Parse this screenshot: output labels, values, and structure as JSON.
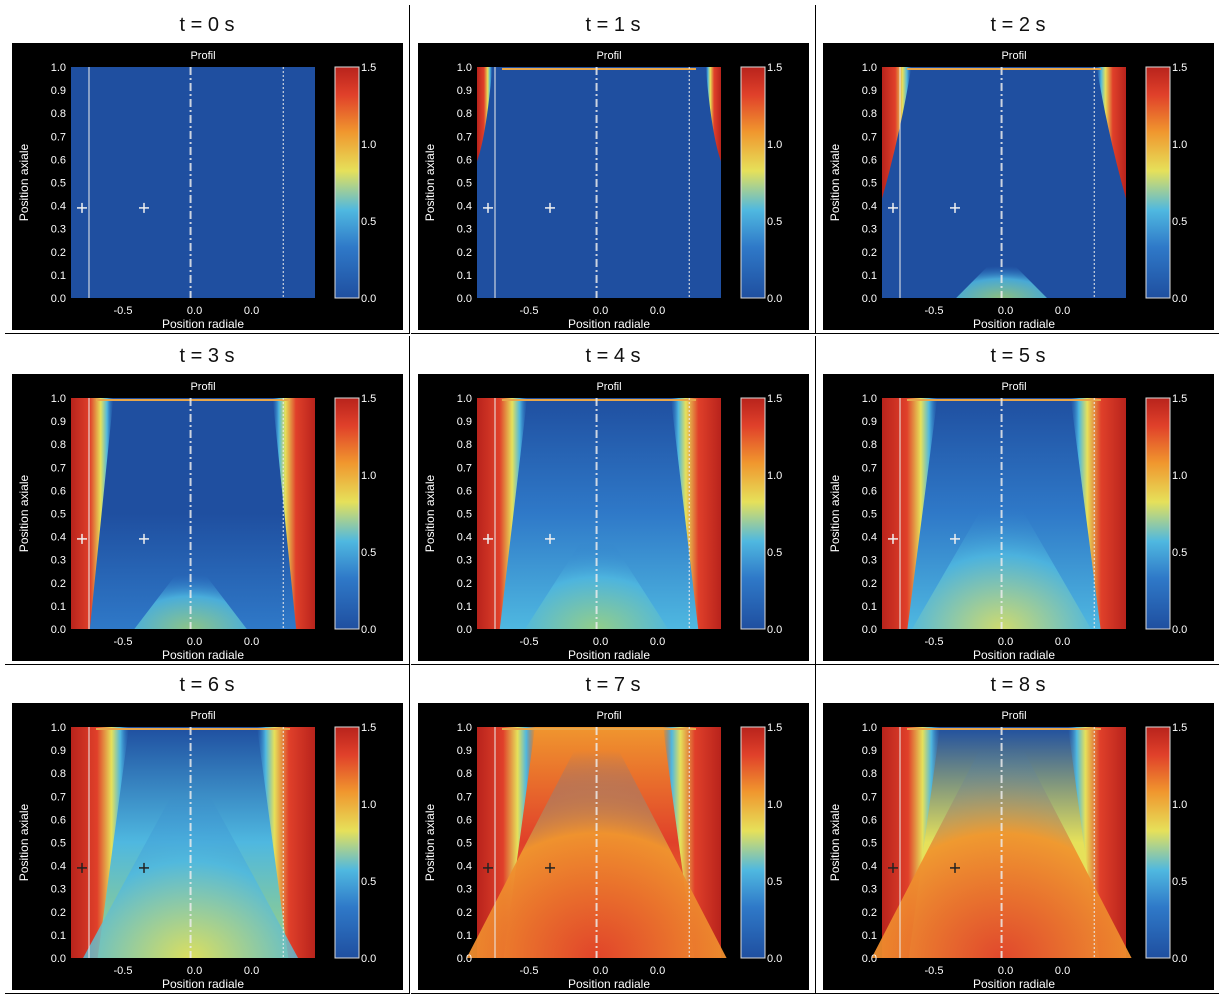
{
  "figure": {
    "colors": {
      "deep_blue": "#1f4fa0",
      "blue": "#2f79c8",
      "cyan": "#4fb8e0",
      "green": "#9fd27a",
      "yellow": "#e6e15a",
      "orange": "#f0962e",
      "red": "#e0402a",
      "dark_red": "#b8231c",
      "background": "#000000"
    },
    "colormap": "jet-like blue→cyan→yellow→red",
    "colorbar": {
      "ticks": [
        "1.5",
        "1.0",
        "0.5",
        "0.0"
      ],
      "range": [
        0.0,
        1.5
      ]
    }
  },
  "chart_data": [
    {
      "type": "heatmap",
      "panel_title": "t = 0 s",
      "subtitle": "Profil",
      "xlabel": "Position radiale",
      "ylabel": "Position axiale",
      "yticks": [
        "1.0",
        "0.9",
        "0.8",
        "0.7",
        "0.6",
        "0.5",
        "0.4",
        "0.3",
        "0.2",
        "0.1",
        "0.0"
      ],
      "xticks": [
        "-0.5",
        "0.0",
        "0.0"
      ],
      "ylim": [
        0.0,
        1.0
      ],
      "state": {
        "front": 0.0,
        "fill": 0.0,
        "level": 0.15
      }
    },
    {
      "type": "heatmap",
      "panel_title": "t = 1 s",
      "subtitle": "Profil",
      "xlabel": "Position radiale",
      "ylabel": "Position axiale",
      "yticks": [
        "1.0",
        "0.9",
        "0.8",
        "0.7",
        "0.6",
        "0.5",
        "0.4",
        "0.3",
        "0.2",
        "0.1",
        "0.0"
      ],
      "xticks": [
        "-0.5",
        "0.0",
        "0.0"
      ],
      "ylim": [
        0.0,
        1.0
      ],
      "state": {
        "front": 0.18,
        "fill": 0.02,
        "level": 0.15
      }
    },
    {
      "type": "heatmap",
      "panel_title": "t = 2 s",
      "subtitle": "Profil",
      "xlabel": "Position radiale",
      "ylabel": "Position axiale",
      "yticks": [
        "1.0",
        "0.9",
        "0.8",
        "0.7",
        "0.6",
        "0.5",
        "0.4",
        "0.3",
        "0.2",
        "0.1",
        "0.0"
      ],
      "xticks": [
        "-0.5",
        "0.0",
        "0.0"
      ],
      "ylim": [
        0.0,
        1.0
      ],
      "state": {
        "front": 0.45,
        "fill": 0.06,
        "level": 0.17
      }
    },
    {
      "type": "heatmap",
      "panel_title": "t = 3 s",
      "subtitle": "Profil",
      "xlabel": "Position radiale",
      "ylabel": "Position axiale",
      "yticks": [
        "1.0",
        "0.9",
        "0.8",
        "0.7",
        "0.6",
        "0.5",
        "0.4",
        "0.3",
        "0.2",
        "0.1",
        "0.0"
      ],
      "xticks": [
        "-0.5",
        "0.0",
        "0.0"
      ],
      "ylim": [
        0.0,
        1.0
      ],
      "state": {
        "front": 0.7,
        "fill": 0.18,
        "level": 0.22
      }
    },
    {
      "type": "heatmap",
      "panel_title": "t = 4 s",
      "subtitle": "Profil",
      "xlabel": "Position radiale",
      "ylabel": "Position axiale",
      "yticks": [
        "1.0",
        "0.9",
        "0.8",
        "0.7",
        "0.6",
        "0.5",
        "0.4",
        "0.3",
        "0.2",
        "0.1",
        "0.0"
      ],
      "xticks": [
        "-0.5",
        "0.0",
        "0.0"
      ],
      "ylim": [
        0.0,
        1.0
      ],
      "state": {
        "front": 0.85,
        "fill": 0.35,
        "level": 0.3
      }
    },
    {
      "type": "heatmap",
      "panel_title": "t = 5 s",
      "subtitle": "Profil",
      "xlabel": "Position radiale",
      "ylabel": "Position axiale",
      "yticks": [
        "1.0",
        "0.9",
        "0.8",
        "0.7",
        "0.6",
        "0.5",
        "0.4",
        "0.3",
        "0.2",
        "0.1",
        "0.0"
      ],
      "xticks": [
        "-0.5",
        "0.0",
        "0.0"
      ],
      "ylim": [
        0.0,
        1.0
      ],
      "state": {
        "front": 0.95,
        "fill": 0.55,
        "level": 0.4
      }
    },
    {
      "type": "heatmap",
      "panel_title": "t = 6 s",
      "subtitle": "Profil",
      "xlabel": "Position radiale",
      "ylabel": "Position axiale",
      "yticks": [
        "1.0",
        "0.9",
        "0.8",
        "0.7",
        "0.6",
        "0.5",
        "0.4",
        "0.3",
        "0.2",
        "0.1",
        "0.0"
      ],
      "xticks": [
        "-0.5",
        "0.0",
        "0.0"
      ],
      "ylim": [
        0.0,
        1.0
      ],
      "state": {
        "front": 1.0,
        "fill": 0.75,
        "level": 0.55
      }
    },
    {
      "type": "heatmap",
      "panel_title": "t = 7 s",
      "subtitle": "Profil",
      "xlabel": "Position radiale",
      "ylabel": "Position axiale",
      "yticks": [
        "1.0",
        "0.9",
        "0.8",
        "0.7",
        "0.6",
        "0.5",
        "0.4",
        "0.3",
        "0.2",
        "0.1",
        "0.0"
      ],
      "xticks": [
        "-0.5",
        "0.0",
        "0.0"
      ],
      "ylim": [
        0.0,
        1.0
      ],
      "state": {
        "front": 1.0,
        "fill": 1.0,
        "level": 0.8
      }
    },
    {
      "type": "heatmap",
      "panel_title": "t = 8 s",
      "subtitle": "Profil",
      "xlabel": "Position radiale",
      "ylabel": "Position axiale",
      "yticks": [
        "1.0",
        "0.9",
        "0.8",
        "0.7",
        "0.6",
        "0.5",
        "0.4",
        "0.3",
        "0.2",
        "0.1",
        "0.0"
      ],
      "xticks": [
        "-0.5",
        "0.0",
        "0.0"
      ],
      "ylim": [
        0.0,
        1.0
      ],
      "state": {
        "front": 1.0,
        "fill": 1.0,
        "level": 0.72
      }
    }
  ]
}
